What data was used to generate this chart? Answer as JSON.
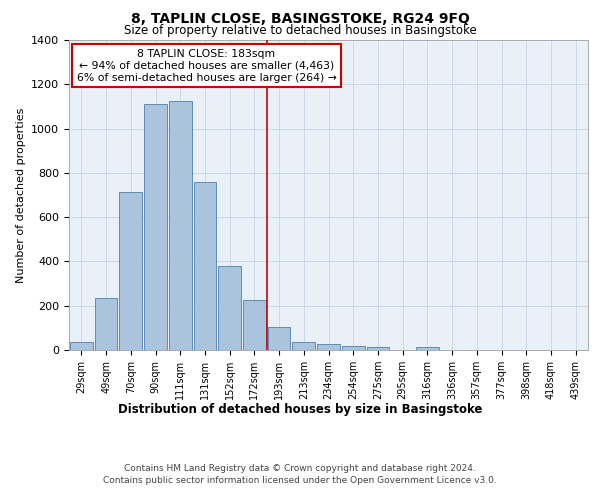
{
  "title": "8, TAPLIN CLOSE, BASINGSTOKE, RG24 9FQ",
  "subtitle": "Size of property relative to detached houses in Basingstoke",
  "xlabel": "Distribution of detached houses by size in Basingstoke",
  "ylabel": "Number of detached properties",
  "bar_labels": [
    "29sqm",
    "49sqm",
    "70sqm",
    "90sqm",
    "111sqm",
    "131sqm",
    "152sqm",
    "172sqm",
    "193sqm",
    "213sqm",
    "234sqm",
    "254sqm",
    "275sqm",
    "295sqm",
    "316sqm",
    "336sqm",
    "357sqm",
    "377sqm",
    "398sqm",
    "418sqm",
    "439sqm"
  ],
  "bar_values": [
    35,
    235,
    715,
    1110,
    1125,
    760,
    380,
    225,
    105,
    35,
    25,
    20,
    15,
    0,
    15,
    0,
    0,
    0,
    0,
    0,
    0
  ],
  "bar_color": "#aac4dd",
  "bar_edge_color": "#5b8db8",
  "grid_color": "#ccd9e8",
  "background_color": "#eaf0f8",
  "vline_x": 7.5,
  "vline_color": "#cc0000",
  "annotation_text": "8 TAPLIN CLOSE: 183sqm\n← 94% of detached houses are smaller (4,463)\n6% of semi-detached houses are larger (264) →",
  "annotation_box_color": "#cc0000",
  "ylim": [
    0,
    1400
  ],
  "yticks": [
    0,
    200,
    400,
    600,
    800,
    1000,
    1200,
    1400
  ],
  "footer1": "Contains HM Land Registry data © Crown copyright and database right 2024.",
  "footer2": "Contains public sector information licensed under the Open Government Licence v3.0."
}
